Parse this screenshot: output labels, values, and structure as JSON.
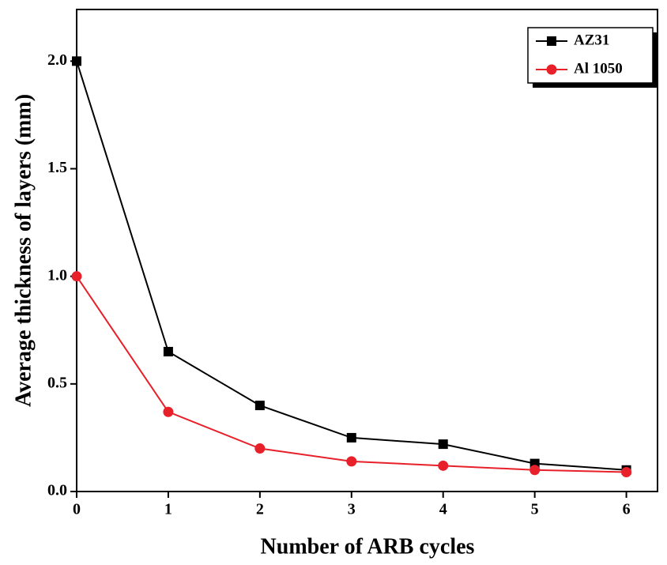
{
  "chart_data": {
    "type": "line",
    "x_label": "Number of ARB cycles",
    "y_label": "Average thickness of layers (mm)",
    "x": [
      0,
      1,
      2,
      3,
      4,
      5,
      6
    ],
    "series": [
      {
        "name": "AZ31",
        "color": "#000000",
        "marker": "square",
        "values": [
          2.0,
          0.65,
          0.4,
          0.25,
          0.22,
          0.13,
          0.1
        ]
      },
      {
        "name": "Al 1050",
        "color": "#e8202a",
        "marker": "circle",
        "values": [
          1.0,
          0.37,
          0.2,
          0.14,
          0.12,
          0.1,
          0.09
        ]
      }
    ],
    "xlim": [
      0,
      6.34
    ],
    "ylim": [
      0,
      2.24
    ],
    "xticks": [
      0,
      1,
      2,
      3,
      4,
      5,
      6
    ],
    "yticks": [
      {
        "value": 0,
        "label": "0.0"
      },
      {
        "value": 0.5,
        "label": "0.5"
      },
      {
        "value": 1,
        "label": "1.0"
      },
      {
        "value": 1.5,
        "label": "1.5"
      },
      {
        "value": 2,
        "label": "2.0"
      }
    ],
    "legend": "upper right"
  }
}
